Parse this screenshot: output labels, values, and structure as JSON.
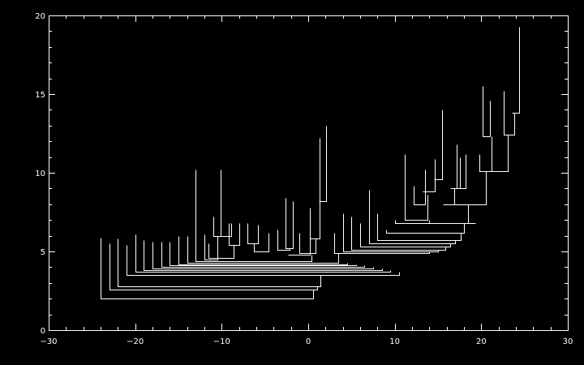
{
  "chart_data": {
    "type": "dendrogram",
    "title": "",
    "xlabel": "",
    "ylabel": "",
    "xlim": [
      -30,
      30
    ],
    "ylim": [
      0,
      20
    ],
    "xticks": [
      -30,
      -20,
      -10,
      0,
      10,
      20,
      30
    ],
    "xtick_labels": [
      "−30",
      "−20",
      "−10",
      "0",
      "10",
      "20",
      "30"
    ],
    "yticks": [
      0,
      5,
      10,
      15,
      20
    ],
    "ytick_labels": [
      "0",
      "5",
      "10",
      "15",
      "20"
    ],
    "x_minor_step": 2,
    "y_minor_step": 1,
    "grid": false,
    "line_color": "#ffffff",
    "background": "#000000",
    "segments": [
      {
        "x": [
          -10.1,
          -10.1,
          -8.9,
          -8.9
        ],
        "y": [
          10.2,
          6.0,
          6.0,
          6.8
        ]
      },
      {
        "x": [
          -11.0,
          -11.0,
          -10.1,
          -10.1
        ],
        "y": [
          7.2,
          6.0,
          6.0,
          10.2
        ]
      },
      {
        "x": [
          -9.2,
          -9.2,
          -8.0,
          -8.0
        ],
        "y": [
          6.8,
          5.4,
          5.4,
          6.8
        ]
      },
      {
        "x": [
          -7.0,
          -7.0,
          -5.8,
          -5.8
        ],
        "y": [
          6.8,
          5.5,
          5.5,
          6.7
        ]
      },
      {
        "x": [
          -6.3,
          -6.3,
          -4.6,
          -4.6
        ],
        "y": [
          5.5,
          5.0,
          5.0,
          6.2
        ]
      },
      {
        "x": [
          -2.6,
          -2.6,
          -1.8,
          -1.8
        ],
        "y": [
          8.4,
          5.2,
          5.2,
          8.2
        ]
      },
      {
        "x": [
          -3.6,
          -3.6,
          -2.2,
          -2.2
        ],
        "y": [
          6.4,
          5.1,
          5.1,
          5.2
        ]
      },
      {
        "x": [
          0.2,
          0.2,
          1.3,
          1.3
        ],
        "y": [
          7.8,
          5.8,
          5.8,
          12.2
        ]
      },
      {
        "x": [
          1.2,
          1.2,
          2.1,
          2.1
        ],
        "y": [
          8.2,
          8.2,
          8.2,
          13.0
        ]
      },
      {
        "x": [
          -2.3,
          -2.3,
          0.2,
          0.2
        ],
        "y": [
          4.8,
          4.8,
          4.8,
          5.8
        ]
      },
      {
        "x": [
          -1.0,
          -1.0,
          0.8,
          0.8
        ],
        "y": [
          6.2,
          4.9,
          4.9,
          5.8
        ]
      },
      {
        "x": [
          12.2,
          12.2,
          13.5,
          13.5
        ],
        "y": [
          9.2,
          8.0,
          8.0,
          10.2
        ]
      },
      {
        "x": [
          13.2,
          13.2,
          14.6,
          14.6
        ],
        "y": [
          8.8,
          8.8,
          8.8,
          10.9
        ]
      },
      {
        "x": [
          14.5,
          14.5,
          15.5,
          15.5
        ],
        "y": [
          9.6,
          9.6,
          9.6,
          14.0
        ]
      },
      {
        "x": [
          11.2,
          11.2,
          13.8,
          13.8
        ],
        "y": [
          11.2,
          7.0,
          7.0,
          8.6
        ]
      },
      {
        "x": [
          16.4,
          16.4,
          17.5,
          17.5
        ],
        "y": [
          9.0,
          9.0,
          9.0,
          11.0
        ]
      },
      {
        "x": [
          17.2,
          17.2,
          18.2,
          18.2
        ],
        "y": [
          11.8,
          9.0,
          9.0,
          11.2
        ]
      },
      {
        "x": [
          20.2,
          20.2,
          21.0,
          21.0
        ],
        "y": [
          15.5,
          12.3,
          12.3,
          14.6
        ]
      },
      {
        "x": [
          22.6,
          22.6,
          23.8,
          23.8
        ],
        "y": [
          15.2,
          12.4,
          12.4,
          13.8
        ]
      },
      {
        "x": [
          23.5,
          23.5,
          24.4,
          24.4
        ],
        "y": [
          13.8,
          13.8,
          13.8,
          19.3
        ]
      },
      {
        "x": [
          19.8,
          19.8,
          21.2,
          21.2
        ],
        "y": [
          11.2,
          10.1,
          10.1,
          12.3
        ]
      },
      {
        "x": [
          21.2,
          21.2,
          23.1,
          23.1
        ],
        "y": [
          10.1,
          10.1,
          10.1,
          12.4
        ]
      },
      {
        "x": [
          15.6,
          15.6,
          16.9,
          16.9
        ],
        "y": [
          8.0,
          8.0,
          8.0,
          9.0
        ]
      },
      {
        "x": [
          16.9,
          16.9,
          20.5,
          20.5
        ],
        "y": [
          8.0,
          8.0,
          8.0,
          10.1
        ]
      },
      {
        "x": [
          14.0,
          14.0,
          18.5,
          18.5
        ],
        "y": [
          7.0,
          6.8,
          6.8,
          8.0
        ]
      },
      {
        "x": [
          10.0,
          10.0,
          19.3,
          19.3
        ],
        "y": [
          7.0,
          6.8,
          6.8,
          6.8
        ]
      },
      {
        "x": [
          9.0,
          9.0,
          18.0,
          18.0
        ],
        "y": [
          6.4,
          6.2,
          6.2,
          6.8
        ]
      },
      {
        "x": [
          8.0,
          8.0,
          17.6,
          17.6
        ],
        "y": [
          7.4,
          5.7,
          5.7,
          6.2
        ]
      },
      {
        "x": [
          7.0,
          7.0,
          17.0,
          17.0
        ],
        "y": [
          8.9,
          5.5,
          5.5,
          5.7
        ]
      },
      {
        "x": [
          6.0,
          6.0,
          16.4,
          16.4
        ],
        "y": [
          6.8,
          5.3,
          5.3,
          5.5
        ]
      },
      {
        "x": [
          5.0,
          5.0,
          15.8,
          15.8
        ],
        "y": [
          7.2,
          5.1,
          5.1,
          5.3
        ]
      },
      {
        "x": [
          4.0,
          4.0,
          15.0,
          15.0
        ],
        "y": [
          7.4,
          5.0,
          5.0,
          5.1
        ]
      },
      {
        "x": [
          3.0,
          3.0,
          14.0,
          14.0
        ],
        "y": [
          6.2,
          4.9,
          4.9,
          5.0
        ]
      },
      {
        "x": [
          -11.5,
          -11.5,
          -8.6,
          -8.6
        ],
        "y": [
          5.5,
          4.6,
          4.6,
          5.4
        ]
      },
      {
        "x": [
          -12.0,
          -12.0,
          -10.5,
          -10.5
        ],
        "y": [
          6.1,
          4.5,
          4.5,
          6.0
        ]
      },
      {
        "x": [
          -13.0,
          -13.0,
          0.4,
          0.4
        ],
        "y": [
          10.2,
          4.4,
          4.4,
          4.8
        ]
      },
      {
        "x": [
          -14.0,
          -14.0,
          3.5,
          3.5
        ],
        "y": [
          6.0,
          4.3,
          4.3,
          4.9
        ]
      },
      {
        "x": [
          -15.0,
          -15.0,
          4.5,
          4.5
        ],
        "y": [
          6.0,
          4.2,
          4.2,
          4.3
        ]
      },
      {
        "x": [
          -16.0,
          -16.0,
          5.5,
          5.5
        ],
        "y": [
          5.6,
          4.1,
          4.1,
          4.2
        ]
      },
      {
        "x": [
          -17.0,
          -17.0,
          6.5,
          6.5
        ],
        "y": [
          5.6,
          4.0,
          4.0,
          4.1
        ]
      },
      {
        "x": [
          -18.0,
          -18.0,
          7.5,
          7.5
        ],
        "y": [
          5.6,
          3.9,
          3.9,
          4.0
        ]
      },
      {
        "x": [
          -19.0,
          -19.0,
          8.5,
          8.5
        ],
        "y": [
          5.7,
          3.8,
          3.8,
          3.9
        ]
      },
      {
        "x": [
          -20.0,
          -20.0,
          9.5,
          9.5
        ],
        "y": [
          6.1,
          3.7,
          3.7,
          3.8
        ]
      },
      {
        "x": [
          -21.0,
          -21.0,
          10.5,
          10.5
        ],
        "y": [
          5.4,
          3.5,
          3.5,
          3.7
        ]
      },
      {
        "x": [
          -22.0,
          -22.0,
          1.4,
          1.4
        ],
        "y": [
          5.8,
          2.8,
          2.8,
          3.5
        ]
      },
      {
        "x": [
          -23.0,
          -23.0,
          1.0,
          1.0
        ],
        "y": [
          5.5,
          2.6,
          2.6,
          2.8
        ]
      },
      {
        "x": [
          -24.0,
          -24.0,
          0.6,
          0.6
        ],
        "y": [
          5.9,
          2.0,
          2.0,
          2.6
        ]
      }
    ]
  }
}
